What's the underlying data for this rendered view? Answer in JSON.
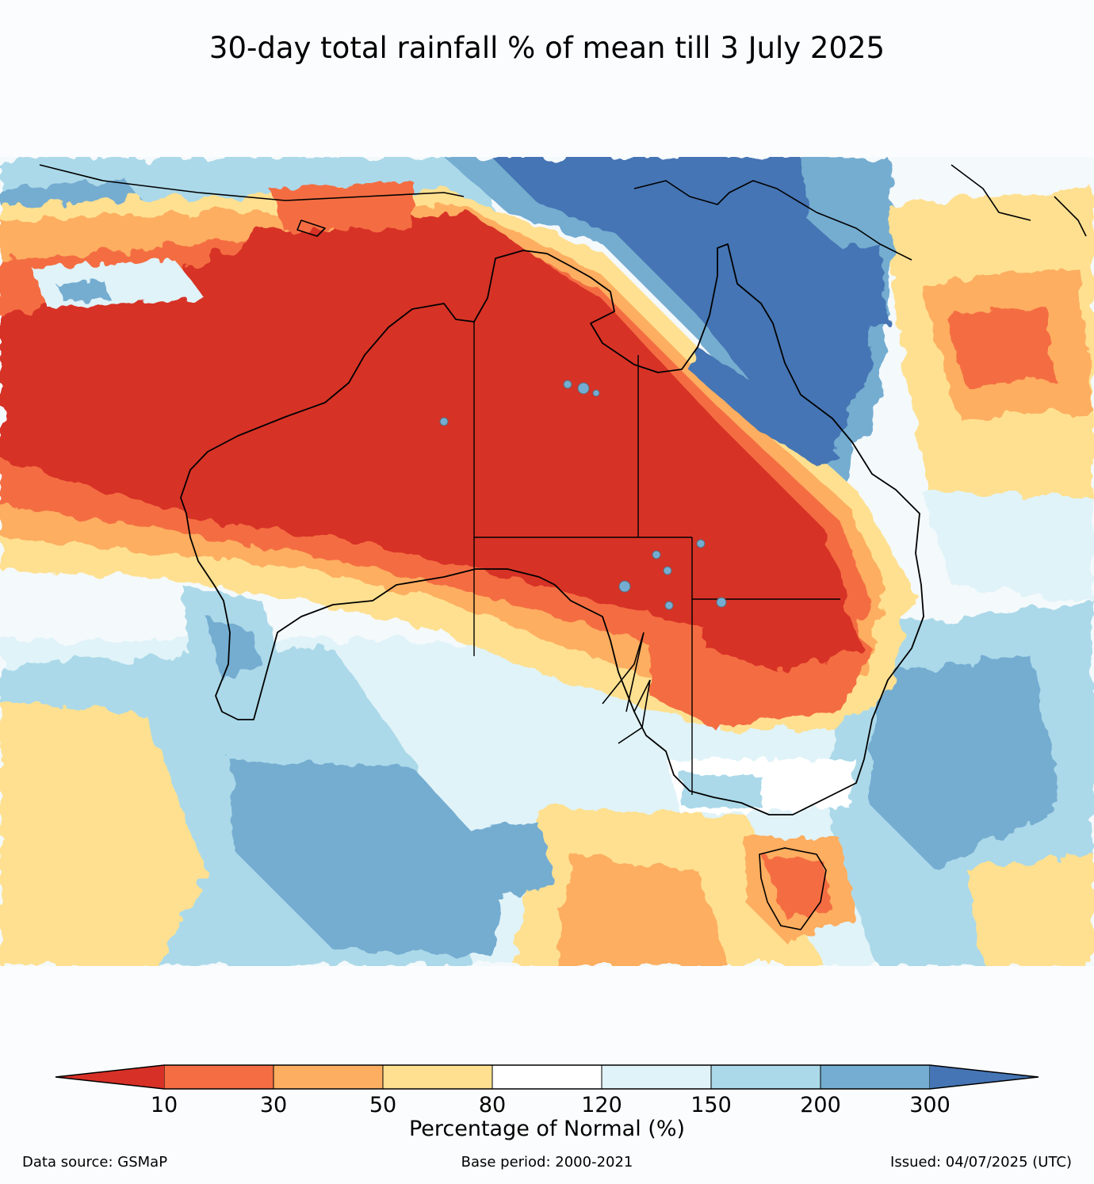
{
  "title": "30-day total rainfall % of mean till 3 July 2025",
  "colorbar": {
    "label": "Percentage of Normal (%)",
    "ticks": [
      "10",
      "30",
      "50",
      "80",
      "120",
      "150",
      "200",
      "300"
    ],
    "colors": [
      "#d73027",
      "#f46d43",
      "#fdae61",
      "#fee090",
      "#ffffff",
      "#e0f3f8",
      "#abd9e9",
      "#74add1",
      "#4575b4"
    ]
  },
  "footer": {
    "source": "Data source: GSMaP",
    "base_period": "Base period: 2000-2021",
    "issued": "Issued: 04/07/2025 (UTC)"
  }
}
